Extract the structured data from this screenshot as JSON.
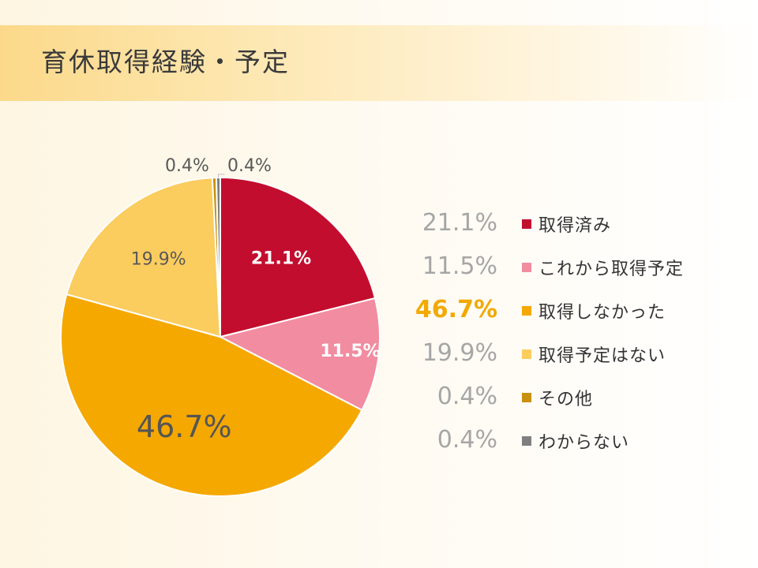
{
  "chart_data": {
    "type": "pie",
    "title": "育休取得経験・予定",
    "slices": [
      {
        "label": "取得済み",
        "value": 21.1,
        "display": "21.1%",
        "color": "#c30d2e"
      },
      {
        "label": "これから取得予定",
        "value": 11.5,
        "display": "11.5%",
        "color": "#f28ca0"
      },
      {
        "label": "取得しなかった",
        "value": 46.7,
        "display": "46.7%",
        "color": "#f5a800"
      },
      {
        "label": "取得予定はない",
        "value": 19.9,
        "display": "19.9%",
        "color": "#fbcc5e"
      },
      {
        "label": "その他",
        "value": 0.4,
        "display": "0.4%",
        "color": "#c8900c"
      },
      {
        "label": "わからない",
        "value": 0.4,
        "display": "0.4%",
        "color": "#7f7f7f"
      }
    ],
    "legend_position": "right",
    "highlight_index": 2
  }
}
